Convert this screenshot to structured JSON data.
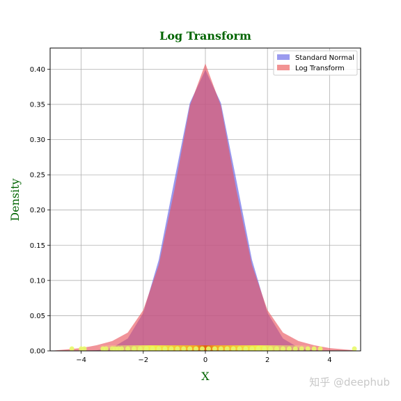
{
  "chart_data": {
    "type": "area",
    "title": "Log Transform",
    "xlabel": "X",
    "ylabel": "Density",
    "xlim": [
      -5,
      5
    ],
    "ylim": [
      0,
      0.43
    ],
    "grid": true,
    "legend_position": "top-right",
    "x_ticks": [
      -4,
      -2,
      0,
      2,
      4
    ],
    "x_tick_labels": [
      "−4",
      "−2",
      "0",
      "2",
      "4"
    ],
    "y_ticks": [
      0.0,
      0.05,
      0.1,
      0.15,
      0.2,
      0.25,
      0.3,
      0.35,
      0.4
    ],
    "y_tick_labels": [
      "0.00",
      "0.05",
      "0.10",
      "0.15",
      "0.20",
      "0.25",
      "0.30",
      "0.35",
      "0.40"
    ],
    "series": [
      {
        "name": "Standard Normal",
        "color": "#7070e8",
        "x": [
          -5,
          -4.5,
          -4,
          -3.5,
          -3,
          -2.5,
          -2,
          -1.5,
          -1,
          -0.5,
          0,
          0.5,
          1,
          1.5,
          2,
          2.5,
          3,
          3.5,
          4,
          4.5,
          5
        ],
        "values": [
          0.0,
          0.0,
          0.0001,
          0.0009,
          0.0044,
          0.0175,
          0.054,
          0.1295,
          0.242,
          0.352,
          0.399,
          0.352,
          0.242,
          0.1295,
          0.054,
          0.0175,
          0.0044,
          0.0009,
          0.0001,
          0.0,
          0.0
        ]
      },
      {
        "name": "Log Transform",
        "color": "#f08080",
        "x": [
          -5,
          -4.5,
          -4,
          -3.5,
          -3,
          -2.5,
          -2,
          -1.5,
          -1,
          -0.5,
          0,
          0.5,
          1,
          1.5,
          2,
          2.5,
          3,
          3.5,
          4,
          4.5,
          5
        ],
        "values": [
          0.0,
          0.002,
          0.004,
          0.008,
          0.014,
          0.026,
          0.058,
          0.122,
          0.228,
          0.348,
          0.408,
          0.348,
          0.228,
          0.122,
          0.058,
          0.026,
          0.014,
          0.008,
          0.004,
          0.002,
          0.0
        ]
      }
    ],
    "rug_points": [
      -4.3,
      -4.0,
      -3.9,
      -3.3,
      -3.2,
      -3.0,
      -2.9,
      -2.8,
      -2.7,
      -2.5,
      -2.3,
      -2.1,
      -1.9,
      -1.7,
      -1.5,
      -1.3,
      -1.1,
      -0.9,
      -0.7,
      -0.5,
      -0.3,
      -0.1,
      0.1,
      0.3,
      0.5,
      0.7,
      0.9,
      1.1,
      1.3,
      1.5,
      1.7,
      1.9,
      2.1,
      2.3,
      2.5,
      2.7,
      2.9,
      3.1,
      3.3,
      3.5,
      3.7,
      4.8
    ]
  },
  "watermark": "知乎 @deephub"
}
